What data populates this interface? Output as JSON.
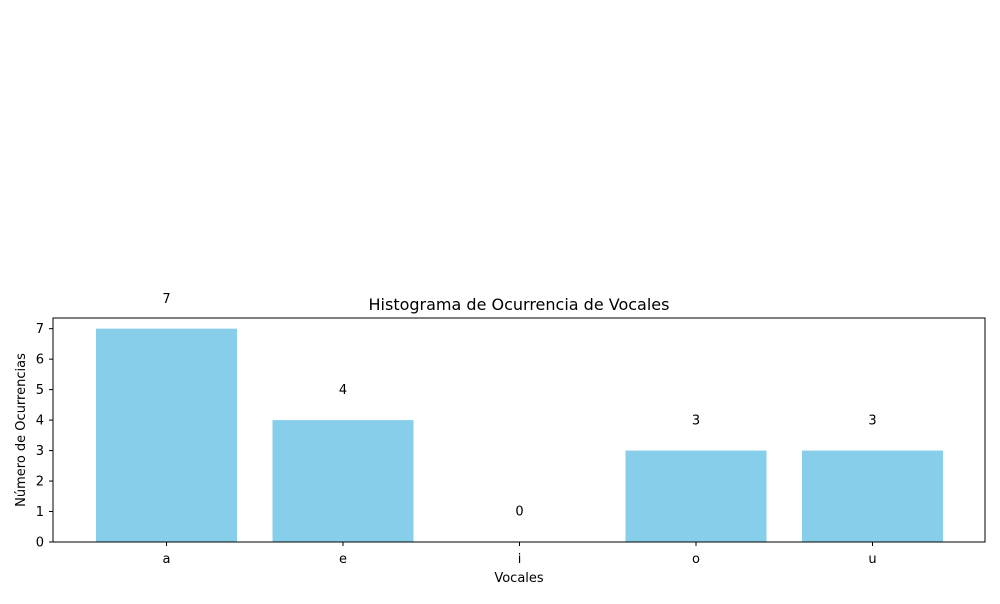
{
  "chart_data": {
    "type": "bar",
    "title": "Histograma de Ocurrencia de Vocales",
    "xlabel": "Vocales",
    "ylabel": "Número de Ocurrencias",
    "categories": [
      "a",
      "e",
      "i",
      "o",
      "u"
    ],
    "values": [
      7,
      4,
      0,
      3,
      3
    ],
    "data_labels": [
      "7",
      "4",
      "0",
      "3",
      "3"
    ],
    "yticks": [
      "0",
      "1",
      "2",
      "3",
      "4",
      "5",
      "6",
      "7"
    ],
    "ylim": [
      0,
      7.35
    ],
    "bar_color": "#87CEEB",
    "grid": false,
    "legend": "none"
  }
}
